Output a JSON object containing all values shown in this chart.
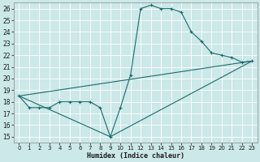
{
  "xlabel": "Humidex (Indice chaleur)",
  "bg_color": "#cce8e8",
  "grid_color": "#b8d8d8",
  "line_color": "#1a6b6b",
  "xlim": [
    -0.5,
    23.5
  ],
  "ylim": [
    14.5,
    26.5
  ],
  "xticks": [
    0,
    1,
    2,
    3,
    4,
    5,
    6,
    7,
    8,
    9,
    10,
    11,
    12,
    13,
    14,
    15,
    16,
    17,
    18,
    19,
    20,
    21,
    22,
    23
  ],
  "yticks": [
    15,
    16,
    17,
    18,
    19,
    20,
    21,
    22,
    23,
    24,
    25,
    26
  ],
  "curve1_x": [
    0,
    1,
    2,
    3,
    4,
    5,
    6,
    7,
    8,
    9,
    10,
    11,
    12,
    13,
    14,
    15,
    16,
    17,
    18,
    19,
    20,
    21,
    22,
    23
  ],
  "curve1_y": [
    18.5,
    17.5,
    17.5,
    17.5,
    18.0,
    18.0,
    18.0,
    18.0,
    17.5,
    15.0,
    17.5,
    20.3,
    26.0,
    26.3,
    26.0,
    26.0,
    25.7,
    24.0,
    23.2,
    22.2,
    22.0,
    21.8,
    21.4,
    21.5
  ],
  "curve2_x": [
    0,
    23
  ],
  "curve2_y": [
    18.5,
    21.5
  ],
  "curve3_x": [
    0,
    9,
    23
  ],
  "curve3_y": [
    18.5,
    15.0,
    21.5
  ],
  "marker_size": 2.5
}
